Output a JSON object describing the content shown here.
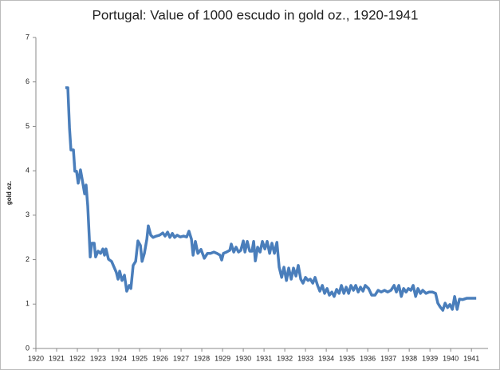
{
  "chart_data": {
    "type": "line",
    "title": "Portugal: Value of 1000 escudo in gold oz., 1920-1941",
    "y_label": "gold oz.",
    "xlim": [
      1920,
      1941.8
    ],
    "xticks": [
      1920,
      1921,
      1922,
      1923,
      1924,
      1925,
      1926,
      1927,
      1928,
      1929,
      1930,
      1931,
      1932,
      1933,
      1934,
      1935,
      1936,
      1937,
      1938,
      1939,
      1940,
      1941
    ],
    "ylim": [
      0,
      7
    ],
    "yticks": [
      0,
      1,
      2,
      3,
      4,
      5,
      6,
      7
    ],
    "grid": false,
    "series": [
      {
        "name": "Value of 1000 escudo",
        "color": "#4a7ebb",
        "x": [
          1921.42,
          1921.54,
          1921.62,
          1921.69,
          1921.81,
          1921.88,
          1921.96,
          1922.04,
          1922.15,
          1922.23,
          1922.35,
          1922.42,
          1922.5,
          1922.62,
          1922.69,
          1922.81,
          1922.88,
          1923.0,
          1923.12,
          1923.23,
          1923.31,
          1923.38,
          1923.5,
          1923.65,
          1923.77,
          1923.88,
          1923.96,
          1924.04,
          1924.15,
          1924.27,
          1924.38,
          1924.5,
          1924.58,
          1924.69,
          1924.81,
          1924.92,
          1925.04,
          1925.12,
          1925.23,
          1925.35,
          1925.42,
          1925.54,
          1925.65,
          1925.81,
          1925.96,
          1926.12,
          1926.23,
          1926.35,
          1926.46,
          1926.58,
          1926.69,
          1926.81,
          1926.96,
          1927.12,
          1927.27,
          1927.38,
          1927.5,
          1927.58,
          1927.69,
          1927.81,
          1927.96,
          1928.12,
          1928.27,
          1928.42,
          1928.58,
          1928.73,
          1928.88,
          1928.96,
          1929.04,
          1929.19,
          1929.35,
          1929.42,
          1929.54,
          1929.65,
          1929.77,
          1929.88,
          1930.0,
          1930.08,
          1930.19,
          1930.31,
          1930.42,
          1930.5,
          1930.58,
          1930.69,
          1930.81,
          1930.92,
          1931.04,
          1931.15,
          1931.27,
          1931.38,
          1931.5,
          1931.62,
          1931.73,
          1931.85,
          1931.96,
          1932.08,
          1932.19,
          1932.31,
          1932.42,
          1932.54,
          1932.65,
          1932.77,
          1932.88,
          1933.0,
          1933.12,
          1933.23,
          1933.35,
          1933.46,
          1933.58,
          1933.69,
          1933.81,
          1933.92,
          1934.04,
          1934.15,
          1934.27,
          1934.38,
          1934.5,
          1934.62,
          1934.73,
          1934.85,
          1934.96,
          1935.08,
          1935.19,
          1935.31,
          1935.42,
          1935.54,
          1935.65,
          1935.77,
          1935.88,
          1936.04,
          1936.19,
          1936.35,
          1936.5,
          1936.65,
          1936.81,
          1936.96,
          1937.12,
          1937.27,
          1937.38,
          1937.5,
          1937.62,
          1937.73,
          1937.85,
          1937.96,
          1938.08,
          1938.19,
          1938.31,
          1938.42,
          1938.54,
          1938.65,
          1938.81,
          1938.96,
          1939.12,
          1939.27,
          1939.38,
          1939.5,
          1939.62,
          1939.73,
          1939.85,
          1939.96,
          1940.08,
          1940.19,
          1940.31,
          1940.42,
          1940.58,
          1940.77,
          1940.96,
          1941.23
        ],
        "values": [
          5.87,
          5.87,
          4.97,
          4.47,
          4.47,
          3.99,
          3.99,
          3.72,
          4.02,
          3.81,
          3.48,
          3.68,
          3.21,
          2.06,
          2.37,
          2.37,
          2.06,
          2.19,
          2.14,
          2.24,
          2.1,
          2.24,
          2.01,
          1.96,
          1.83,
          1.71,
          1.56,
          1.74,
          1.53,
          1.65,
          1.29,
          1.42,
          1.35,
          1.87,
          1.96,
          2.42,
          2.32,
          1.96,
          2.14,
          2.46,
          2.76,
          2.55,
          2.5,
          2.53,
          2.55,
          2.6,
          2.53,
          2.62,
          2.5,
          2.59,
          2.5,
          2.55,
          2.51,
          2.53,
          2.51,
          2.64,
          2.46,
          2.1,
          2.41,
          2.14,
          2.23,
          2.03,
          2.14,
          2.14,
          2.17,
          2.14,
          2.1,
          1.99,
          2.14,
          2.17,
          2.21,
          2.35,
          2.17,
          2.28,
          2.17,
          2.21,
          2.42,
          2.17,
          2.41,
          2.19,
          2.19,
          2.41,
          1.97,
          2.28,
          2.17,
          2.41,
          2.24,
          2.41,
          2.14,
          2.37,
          2.14,
          2.39,
          1.83,
          1.6,
          1.83,
          1.53,
          1.81,
          1.56,
          1.81,
          1.63,
          1.87,
          1.56,
          1.47,
          1.6,
          1.53,
          1.56,
          1.47,
          1.6,
          1.42,
          1.29,
          1.42,
          1.24,
          1.35,
          1.2,
          1.27,
          1.17,
          1.33,
          1.24,
          1.42,
          1.24,
          1.38,
          1.24,
          1.42,
          1.31,
          1.42,
          1.27,
          1.38,
          1.29,
          1.42,
          1.35,
          1.2,
          1.2,
          1.31,
          1.27,
          1.31,
          1.27,
          1.31,
          1.42,
          1.27,
          1.42,
          1.17,
          1.35,
          1.27,
          1.35,
          1.31,
          1.42,
          1.17,
          1.35,
          1.24,
          1.31,
          1.24,
          1.27,
          1.27,
          1.24,
          1.02,
          0.93,
          0.86,
          1.02,
          0.92,
          0.99,
          0.88,
          1.17,
          0.88,
          1.11,
          1.1,
          1.13,
          1.13,
          1.13
        ]
      }
    ]
  }
}
